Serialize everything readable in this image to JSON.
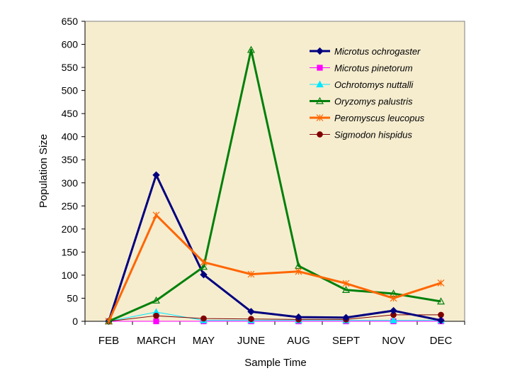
{
  "colors": {
    "plot_background": "#f6edcf",
    "Microtus ochrogaster": "#00007f",
    "Microtus pinetorum": "#ff00ff",
    "Ochrotomys nuttalli": "#00e8ff",
    "Oryzomys palustris": "#00800a",
    "Peromyscus leucopus": "#ff6600",
    "Sigmodon hispidus": "#800000"
  },
  "chart_data": {
    "type": "line",
    "title": "",
    "xlabel": "Sample Time",
    "ylabel": "Population Size",
    "categories": [
      "FEB",
      "MARCH",
      "MAY",
      "JUNE",
      "AUG",
      "SEPT",
      "NOV",
      "DEC"
    ],
    "ylim": [
      0,
      650
    ],
    "yticks": [
      0,
      50,
      100,
      150,
      200,
      250,
      300,
      350,
      400,
      450,
      500,
      550,
      600,
      650
    ],
    "grid": false,
    "legend_position": "top-right",
    "series": [
      {
        "name": "Microtus ochrogaster",
        "marker": "diamond",
        "values": [
          0,
          317,
          101,
          21,
          9,
          8,
          23,
          2
        ]
      },
      {
        "name": "Microtus pinetorum",
        "marker": "square",
        "values": [
          0,
          0,
          0,
          0,
          0,
          0,
          0,
          0
        ]
      },
      {
        "name": "Ochrotomys nuttalli",
        "marker": "triangle",
        "values": [
          0,
          20,
          2,
          2,
          2,
          2,
          2,
          2
        ]
      },
      {
        "name": "Oryzomys palustris",
        "marker": "triangle-open",
        "values": [
          0,
          45,
          118,
          588,
          120,
          68,
          60,
          43
        ]
      },
      {
        "name": "Peromyscus leucopus",
        "marker": "star",
        "values": [
          0,
          230,
          128,
          102,
          108,
          82,
          50,
          83
        ]
      },
      {
        "name": "Sigmodon hispidus",
        "marker": "circle",
        "values": [
          0,
          12,
          6,
          5,
          4,
          4,
          14,
          14
        ]
      }
    ]
  }
}
